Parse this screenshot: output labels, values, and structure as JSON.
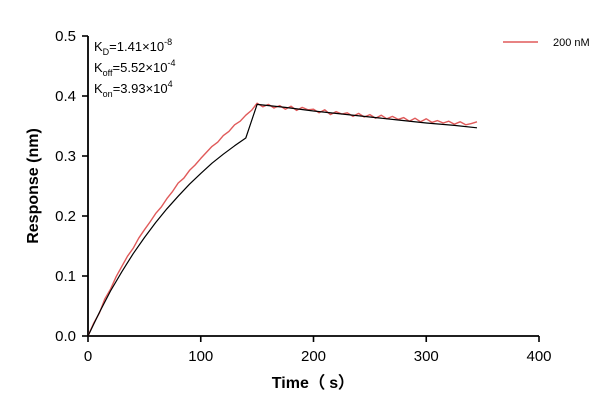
{
  "chart_data": {
    "type": "line",
    "xlabel": "Time（ s）",
    "ylabel": "Response (nm)",
    "xlim": [
      0,
      400
    ],
    "ylim": [
      0,
      0.5
    ],
    "xticks": [
      0,
      100,
      200,
      300,
      400
    ],
    "yticks": [
      0.0,
      0.1,
      0.2,
      0.3,
      0.4,
      0.5
    ],
    "xtick_labels": [
      "0",
      "100",
      "200",
      "300",
      "400"
    ],
    "ytick_labels": [
      "0.0",
      "0.1",
      "0.2",
      "0.3",
      "0.4",
      "0.5"
    ],
    "grid": false,
    "legend_position": "top-right",
    "annotations": {
      "kd": {
        "base": "K",
        "sub": "D",
        "value": "=1.41×10",
        "exp": "-8"
      },
      "koff": {
        "base": "K",
        "sub": "off",
        "value": "=5.52×10",
        "exp": "-4"
      },
      "kon": {
        "base": "K",
        "sub": "on",
        "value": "=3.93×10",
        "exp": "4"
      }
    },
    "series": [
      {
        "name": "200 nM",
        "color": "#e05a5a",
        "x": [
          0,
          5,
          10,
          15,
          20,
          25,
          30,
          35,
          40,
          45,
          50,
          55,
          60,
          65,
          70,
          75,
          80,
          85,
          90,
          95,
          100,
          105,
          110,
          115,
          120,
          125,
          130,
          135,
          140,
          145,
          150,
          155,
          160,
          165,
          170,
          175,
          180,
          185,
          190,
          195,
          200,
          205,
          210,
          215,
          220,
          225,
          230,
          235,
          240,
          245,
          250,
          255,
          260,
          265,
          270,
          275,
          280,
          285,
          290,
          295,
          300,
          305,
          310,
          315,
          320,
          325,
          330,
          335,
          340,
          345
        ],
        "y": [
          0.0,
          0.021,
          0.038,
          0.062,
          0.078,
          0.099,
          0.116,
          0.133,
          0.146,
          0.163,
          0.177,
          0.19,
          0.204,
          0.215,
          0.229,
          0.241,
          0.255,
          0.263,
          0.276,
          0.285,
          0.296,
          0.306,
          0.316,
          0.323,
          0.334,
          0.341,
          0.352,
          0.358,
          0.368,
          0.376,
          0.388,
          0.382,
          0.386,
          0.38,
          0.384,
          0.378,
          0.383,
          0.376,
          0.381,
          0.377,
          0.378,
          0.372,
          0.377,
          0.369,
          0.374,
          0.37,
          0.372,
          0.366,
          0.371,
          0.365,
          0.369,
          0.363,
          0.368,
          0.362,
          0.366,
          0.361,
          0.364,
          0.358,
          0.363,
          0.357,
          0.362,
          0.356,
          0.359,
          0.355,
          0.358,
          0.353,
          0.357,
          0.352,
          0.354,
          0.357
        ]
      },
      {
        "name": "",
        "color": "#000000",
        "x": [
          0,
          10,
          20,
          30,
          40,
          50,
          60,
          70,
          80,
          90,
          100,
          110,
          120,
          130,
          140,
          150,
          175,
          200,
          225,
          250,
          275,
          300,
          325,
          345
        ],
        "y": [
          0.0,
          0.039,
          0.075,
          0.107,
          0.137,
          0.164,
          0.189,
          0.212,
          0.233,
          0.253,
          0.271,
          0.288,
          0.303,
          0.317,
          0.33,
          0.386,
          0.381,
          0.375,
          0.37,
          0.365,
          0.36,
          0.355,
          0.351,
          0.347
        ]
      }
    ]
  }
}
